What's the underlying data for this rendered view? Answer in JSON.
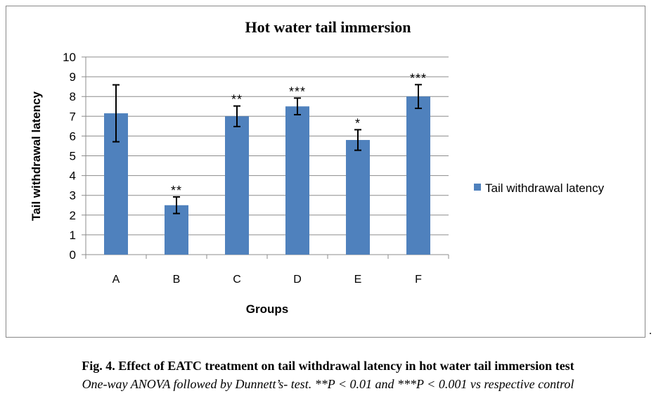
{
  "chart_data": {
    "type": "bar",
    "title": "Hot water tail immersion",
    "xlabel": "Groups",
    "ylabel": "Tail withdrawal latency",
    "categories": [
      "A",
      "B",
      "C",
      "D",
      "E",
      "F"
    ],
    "series": [
      {
        "name": "Tail withdrawal latency",
        "values": [
          7.15,
          2.5,
          7.0,
          7.5,
          5.8,
          8.0
        ],
        "errors": [
          1.44,
          0.42,
          0.52,
          0.42,
          0.52,
          0.6
        ],
        "color": "#4f81bd"
      }
    ],
    "significance": [
      "",
      "**",
      "**",
      "***",
      "*",
      "***"
    ],
    "ylim": [
      0,
      10
    ],
    "yticks": [
      0,
      1,
      2,
      3,
      4,
      5,
      6,
      7,
      8,
      9,
      10
    ],
    "grid": true,
    "legend": "right"
  },
  "caption": {
    "title": "Fig. 4. Effect of EATC treatment on tail withdrawal latency in hot water tail immersion test",
    "note": "One-way ANOVA followed by Dunnett’s- test. **P < 0.01 and ***P < 0.001 vs respective control",
    "trailing": "."
  }
}
